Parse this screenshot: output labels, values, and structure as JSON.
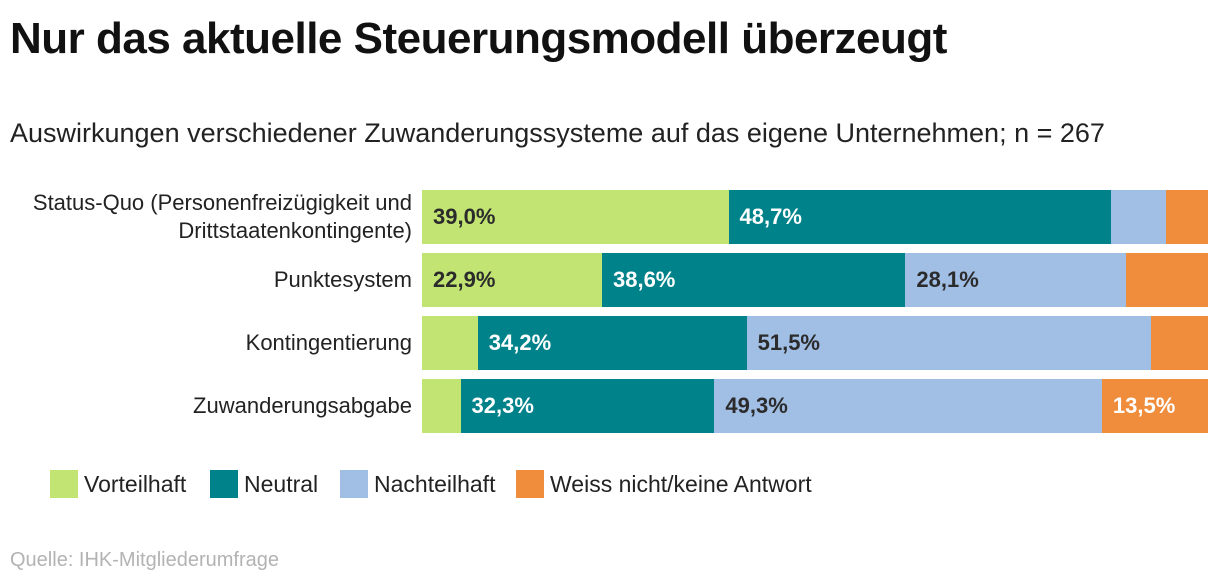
{
  "title": "Nur das aktuelle Steuerungsmodell überzeugt",
  "source": "Quelle: IHK-Mitgliederumfrage",
  "chart_data": {
    "type": "bar",
    "orientation": "horizontal",
    "stacked": true,
    "title": "Nur das aktuelle Steuerungsmodell überzeugt",
    "subtitle": "Auswirkungen verschiedener Zuwanderungssysteme auf das eigene Unternehmen; n = 267",
    "categories": [
      [
        "Status-Quo (Personenfreizügigkeit und",
        "Drittstaatenkontingente)"
      ],
      [
        "Punktesystem"
      ],
      [
        "Kontingentierung"
      ],
      [
        "Zuwanderungsabgabe"
      ]
    ],
    "series": [
      {
        "name": "Vorteilhaft",
        "color": "#c1e473",
        "values": [
          39.0,
          22.9,
          7.1,
          4.9
        ],
        "labels": [
          "39,0%",
          "22,9%",
          "",
          ""
        ],
        "label_color": "#2b2b2b"
      },
      {
        "name": "Neutral",
        "color": "#00828a",
        "values": [
          48.7,
          38.6,
          34.2,
          32.3
        ],
        "labels": [
          "48,7%",
          "38,6%",
          "34,2%",
          "32,3%"
        ],
        "label_color": "#ffffff"
      },
      {
        "name": "Nachteilhaft",
        "color": "#a1bee5",
        "values": [
          6.9,
          28.1,
          51.5,
          49.3
        ],
        "labels": [
          "",
          "28,1%",
          "51,5%",
          "49,3%"
        ],
        "label_color": "#2b2b2b"
      },
      {
        "name": "Weiss nicht/keine Antwort",
        "color": "#f08d3c",
        "values": [
          5.4,
          10.4,
          7.2,
          13.5
        ],
        "labels": [
          "",
          "",
          "",
          "13,5%"
        ],
        "label_color": "#ffffff"
      }
    ],
    "xlim": [
      0,
      100
    ],
    "legend": "bottom-left",
    "grid": false
  }
}
